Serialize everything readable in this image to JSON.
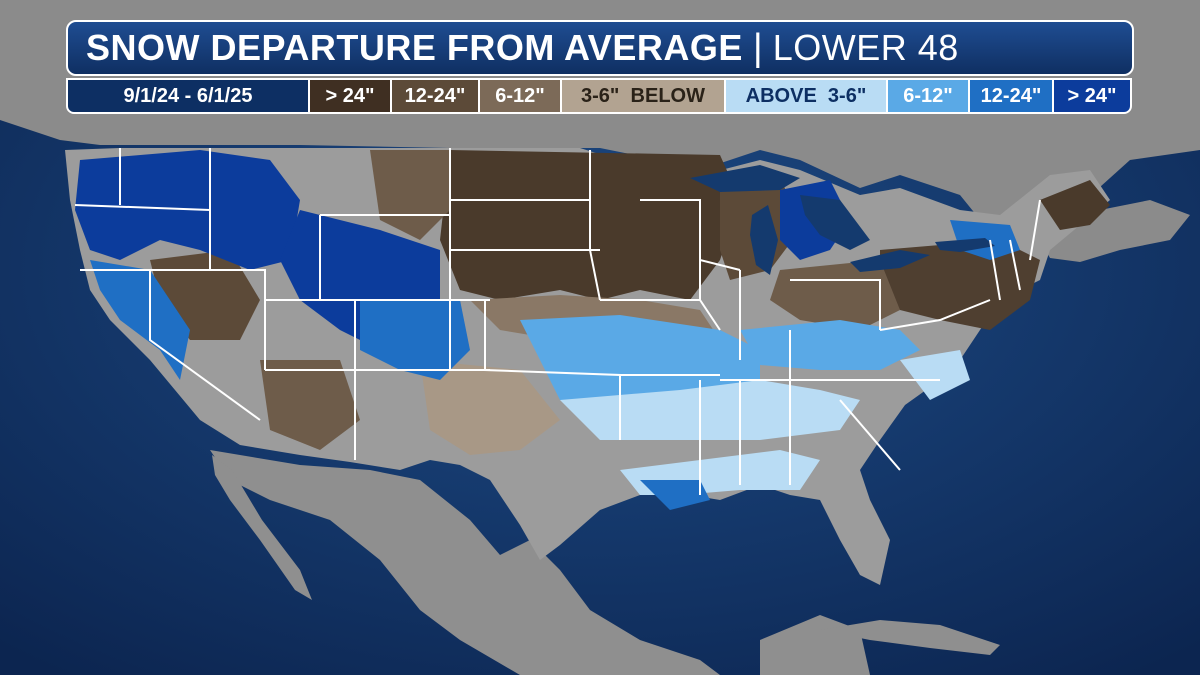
{
  "header": {
    "title": "SNOW DEPARTURE FROM AVERAGE",
    "separator": "|",
    "region": "LOWER 48",
    "date_range": "9/1/24 - 6/1/25"
  },
  "legend": {
    "below_label": "BELOW",
    "above_label": "ABOVE",
    "bins": [
      {
        "label": "> 24\"",
        "color": "#3f2f22",
        "text_color": "#ffffff",
        "kind": "below"
      },
      {
        "label": "12-24\"",
        "color": "#5c4a38",
        "text_color": "#ffffff",
        "kind": "below"
      },
      {
        "label": "6-12\"",
        "color": "#7c6a58",
        "text_color": "#ffffff",
        "kind": "below"
      },
      {
        "label": "3-6\"",
        "color": "#b2a391",
        "text_color": "#2a2218",
        "kind": "below"
      },
      {
        "label": "3-6\"",
        "color": "#b9dcf4",
        "text_color": "#0d2f63",
        "kind": "above"
      },
      {
        "label": "6-12\"",
        "color": "#5aa9e6",
        "text_color": "#ffffff",
        "kind": "above"
      },
      {
        "label": "12-24\"",
        "color": "#1f6fc4",
        "text_color": "#ffffff",
        "kind": "above"
      },
      {
        "label": "> 24\"",
        "color": "#0c3c9c",
        "text_color": "#ffffff",
        "kind": "above"
      }
    ]
  },
  "colors": {
    "ocean": "#143a6e",
    "land": "#9a9a9a",
    "state_border": "#ffffff"
  }
}
